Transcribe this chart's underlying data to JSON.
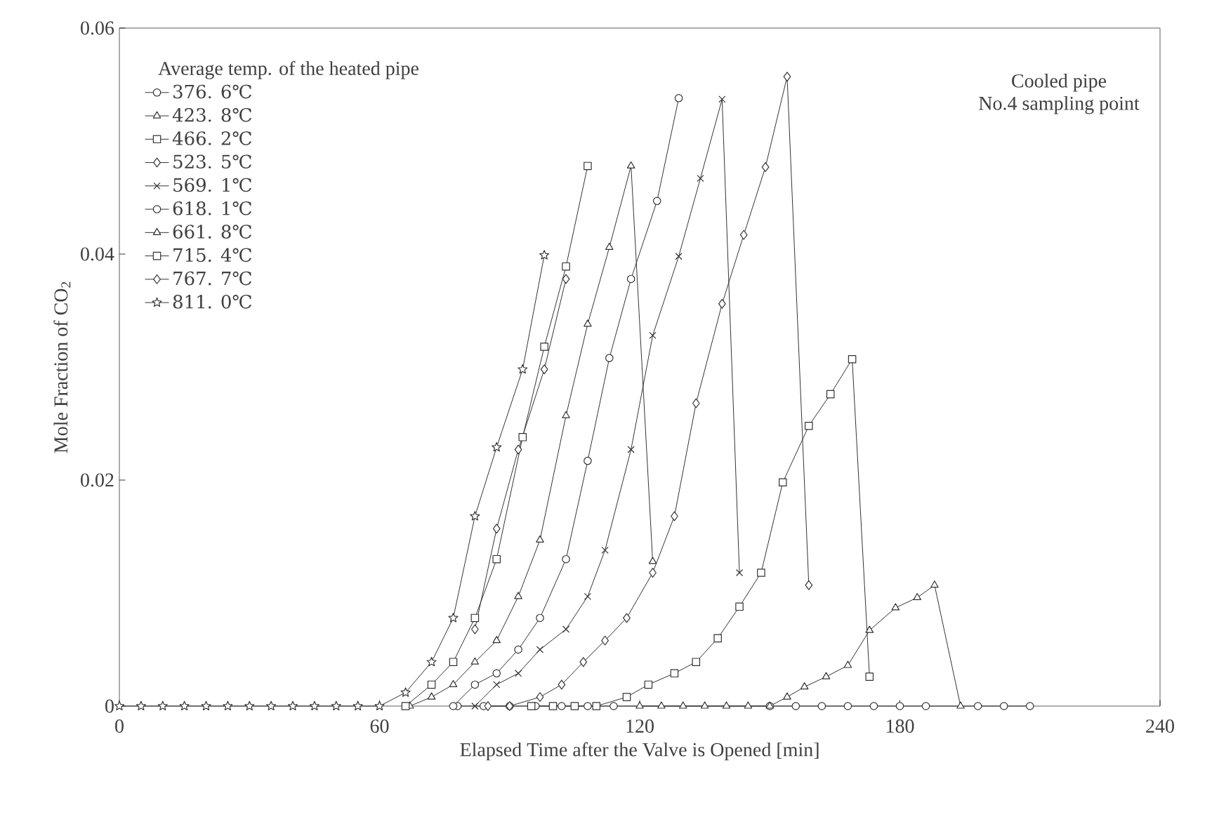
{
  "chart_data": {
    "type": "line",
    "xlabel": "Elapsed Time after the Valve is Opened [min]",
    "ylabel": "Mole Fraction of CO$_{2}$",
    "legend_title": "Average temp. of the heated pipe",
    "legend": "top left",
    "line_style": "solid",
    "grid": false,
    "annotations": [
      "Cooled pipe",
      "No.4 sampling point"
    ],
    "xlim": [
      0,
      240
    ],
    "xticks": [
      0,
      60,
      120,
      180,
      240
    ],
    "ylim": [
      0,
      0.06
    ],
    "yticks": [
      0,
      0.02,
      0.04,
      0.06
    ],
    "series": [
      {
        "name": "376. 6℃",
        "color": "#333333",
        "marker": "circle",
        "x": [
          78,
          84,
          90,
          96,
          102,
          108,
          114,
          150,
          156,
          162,
          168,
          174,
          180,
          186,
          198,
          204,
          210
        ],
        "values": [
          0,
          0,
          0,
          0,
          0,
          0,
          0,
          0,
          0,
          0,
          0,
          0,
          0,
          0,
          0,
          0,
          0
        ]
      },
      {
        "name": "423. 8℃",
        "color": "#333333",
        "marker": "triangle",
        "x": [
          120,
          125,
          130,
          135,
          140,
          145,
          150,
          154,
          158,
          163,
          168,
          173,
          179,
          184,
          188,
          194
        ],
        "values": [
          0,
          0,
          0,
          0,
          0,
          0,
          0,
          0.0008,
          0.0017,
          0.0026,
          0.0036,
          0.0067,
          0.0087,
          0.0096,
          0.0107,
          0
        ]
      },
      {
        "name": "466. 2℃",
        "color": "#333333",
        "marker": "square",
        "x": [
          95,
          100,
          105,
          110,
          117,
          122,
          128,
          133,
          138,
          143,
          148,
          153,
          159,
          164,
          169,
          173
        ],
        "values": [
          0,
          0,
          0,
          0,
          0.0008,
          0.0019,
          0.0029,
          0.0039,
          0.006,
          0.0088,
          0.0118,
          0.0198,
          0.0248,
          0.0276,
          0.0307,
          0.0026
        ]
      },
      {
        "name": "523. 5℃",
        "color": "#333333",
        "marker": "diamond",
        "x": [
          85,
          90,
          97,
          102,
          107,
          112,
          117,
          123,
          128,
          133,
          139,
          144,
          149,
          154,
          159
        ],
        "values": [
          0,
          0,
          0.0008,
          0.0019,
          0.0039,
          0.0058,
          0.0078,
          0.0118,
          0.0168,
          0.0268,
          0.0356,
          0.0417,
          0.0477,
          0.0557,
          0.0107
        ]
      },
      {
        "name": "569. 1℃",
        "color": "#333333",
        "marker": "cross",
        "x": [
          82,
          87,
          92,
          97,
          103,
          108,
          112,
          118,
          123,
          129,
          134,
          139,
          143
        ],
        "values": [
          0,
          0.0019,
          0.0029,
          0.005,
          0.0068,
          0.0097,
          0.0138,
          0.0227,
          0.0328,
          0.0398,
          0.0467,
          0.0537,
          0.0118
        ]
      },
      {
        "name": "618. 1℃",
        "color": "#333333",
        "marker": "circle",
        "x": [
          77,
          82,
          87,
          92,
          97,
          103,
          108,
          113,
          118,
          124,
          129
        ],
        "values": [
          0,
          0.0019,
          0.0029,
          0.005,
          0.0078,
          0.013,
          0.0217,
          0.0308,
          0.0378,
          0.0447,
          0.0538
        ]
      },
      {
        "name": "661. 8℃",
        "color": "#333333",
        "marker": "triangle",
        "x": [
          67,
          72,
          77,
          82,
          87,
          92,
          97,
          103,
          108,
          113,
          118,
          123
        ],
        "values": [
          0,
          0.0008,
          0.0019,
          0.0039,
          0.0058,
          0.0097,
          0.0147,
          0.0257,
          0.0338,
          0.0406,
          0.0478,
          0.0128
        ]
      },
      {
        "name": "715. 4℃",
        "color": "#333333",
        "marker": "square",
        "x": [
          66,
          72,
          77,
          82,
          87,
          93,
          98,
          103,
          108
        ],
        "values": [
          0,
          0.0019,
          0.0039,
          0.0078,
          0.013,
          0.0238,
          0.0318,
          0.0389,
          0.0478
        ]
      },
      {
        "name": "767. 7℃",
        "color": "#333333",
        "marker": "diamond",
        "x": [
          82,
          87,
          92,
          98,
          103
        ],
        "values": [
          0.0068,
          0.0157,
          0.0227,
          0.0298,
          0.0378
        ]
      },
      {
        "name": "811. 0℃",
        "color": "#333333",
        "marker": "star",
        "x": [
          0,
          5,
          10,
          15,
          20,
          25,
          30,
          35,
          40,
          45,
          50,
          55,
          60,
          66,
          72,
          77,
          82,
          87,
          93,
          98
        ],
        "values": [
          0,
          0,
          0,
          0,
          0,
          0,
          0,
          0,
          0,
          0,
          0,
          0,
          0,
          0.0012,
          0.0039,
          0.0078,
          0.0168,
          0.0229,
          0.0298,
          0.0399
        ]
      }
    ]
  }
}
